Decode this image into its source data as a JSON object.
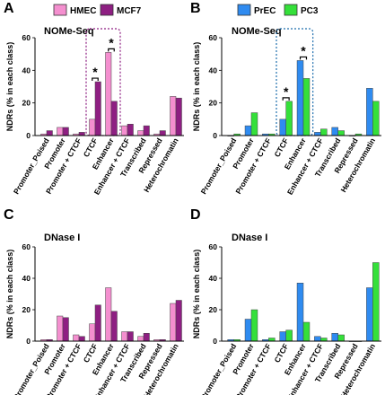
{
  "chart_data": [
    {
      "panel_letter": "A",
      "type": "bar",
      "title": "NOMe-Seq",
      "ylabel": "NDRs (% in each class)",
      "ylim": [
        0,
        60
      ],
      "yticks": [
        0,
        20,
        40,
        60
      ],
      "categories": [
        "Promoter_Poised",
        "Promoter",
        "Promoter + CTCF",
        "CTCF",
        "Enhancer",
        "Enhancer + CTCF",
        "Transcribed",
        "Repressed",
        "Heterochromatin"
      ],
      "legend": [
        {
          "name": "HMEC",
          "color": "#f48fcf"
        },
        {
          "name": "MCF7",
          "color": "#8e1f82"
        }
      ],
      "series": [
        {
          "name": "HMEC",
          "color": "#f48fcf",
          "values": [
            1,
            5,
            1,
            10,
            51,
            6,
            3,
            1,
            24
          ]
        },
        {
          "name": "MCF7",
          "color": "#8e1f82",
          "values": [
            3,
            5,
            2,
            33,
            21,
            7,
            6,
            3,
            23
          ]
        }
      ],
      "highlight_box": {
        "categories": [
          "CTCF",
          "Enhancer"
        ],
        "color": "#8e1f82"
      },
      "significance": [
        {
          "category": "CTCF",
          "label": "*"
        },
        {
          "category": "Enhancer",
          "label": "*"
        }
      ],
      "brackets": [
        "CTCF",
        "Enhancer"
      ]
    },
    {
      "panel_letter": "B",
      "type": "bar",
      "title": "NOMe-Seq",
      "ylabel": "NDRs (% in each class)",
      "ylim": [
        0,
        60
      ],
      "yticks": [
        0,
        20,
        40,
        60
      ],
      "categories": [
        "Promoter_Poised",
        "Promoter",
        "Promoter + CTCF",
        "CTCF",
        "Enhancer",
        "Enhancer + CTCF",
        "Transcribed",
        "Repressed",
        "Heterochromatin"
      ],
      "legend": [
        {
          "name": "PrEC",
          "color": "#2f8bf0"
        },
        {
          "name": "PC3",
          "color": "#35e03a"
        }
      ],
      "series": [
        {
          "name": "PrEC",
          "color": "#2f8bf0",
          "values": [
            0,
            6,
            1,
            10,
            46,
            2,
            5,
            0,
            29
          ]
        },
        {
          "name": "PC3",
          "color": "#35e03a",
          "values": [
            1,
            14,
            1,
            21,
            35,
            4,
            3,
            1,
            21
          ]
        }
      ],
      "highlight_box": {
        "categories": [
          "CTCF",
          "Enhancer"
        ],
        "color": "#1f6fae"
      },
      "significance": [
        {
          "category": "CTCF",
          "label": "*"
        },
        {
          "category": "Enhancer",
          "label": "*"
        }
      ],
      "brackets": [
        "CTCF",
        "Enhancer"
      ]
    },
    {
      "panel_letter": "C",
      "type": "bar",
      "title": "DNase I",
      "ylabel": "NDRs (% in each class)",
      "ylim": [
        0,
        60
      ],
      "yticks": [
        0,
        20,
        40,
        60
      ],
      "categories": [
        "Promoter_Poised",
        "Promoter",
        "Promoter + CTCF",
        "CTCF",
        "Enhancer",
        "Enhancer + CTCF",
        "Transcribed",
        "Repressed",
        "Heterochromatin"
      ],
      "series": [
        {
          "name": "HMEC",
          "color": "#f48fcf",
          "values": [
            1,
            16,
            4,
            11,
            34,
            6,
            3,
            1,
            24
          ]
        },
        {
          "name": "MCF7",
          "color": "#8e1f82",
          "values": [
            1,
            15,
            3,
            23,
            19,
            6,
            5,
            1,
            26
          ]
        }
      ]
    },
    {
      "panel_letter": "D",
      "type": "bar",
      "title": "DNase I",
      "ylabel": "NDRs (% in each class)",
      "ylim": [
        0,
        60
      ],
      "yticks": [
        0,
        20,
        40,
        60
      ],
      "categories": [
        "Promoter_Poised",
        "Promoter",
        "Promoter + CTCF",
        "CTCF",
        "Enhancer",
        "Enhancer + CTCF",
        "Transcribed",
        "Repressed",
        "Heterochromatin"
      ],
      "series": [
        {
          "name": "PrEC",
          "color": "#2f8bf0",
          "values": [
            1,
            14,
            1,
            6,
            37,
            3,
            5,
            0,
            34
          ]
        },
        {
          "name": "PC3",
          "color": "#35e03a",
          "values": [
            1,
            20,
            2,
            7,
            12,
            2,
            4,
            0,
            50
          ]
        }
      ]
    }
  ]
}
